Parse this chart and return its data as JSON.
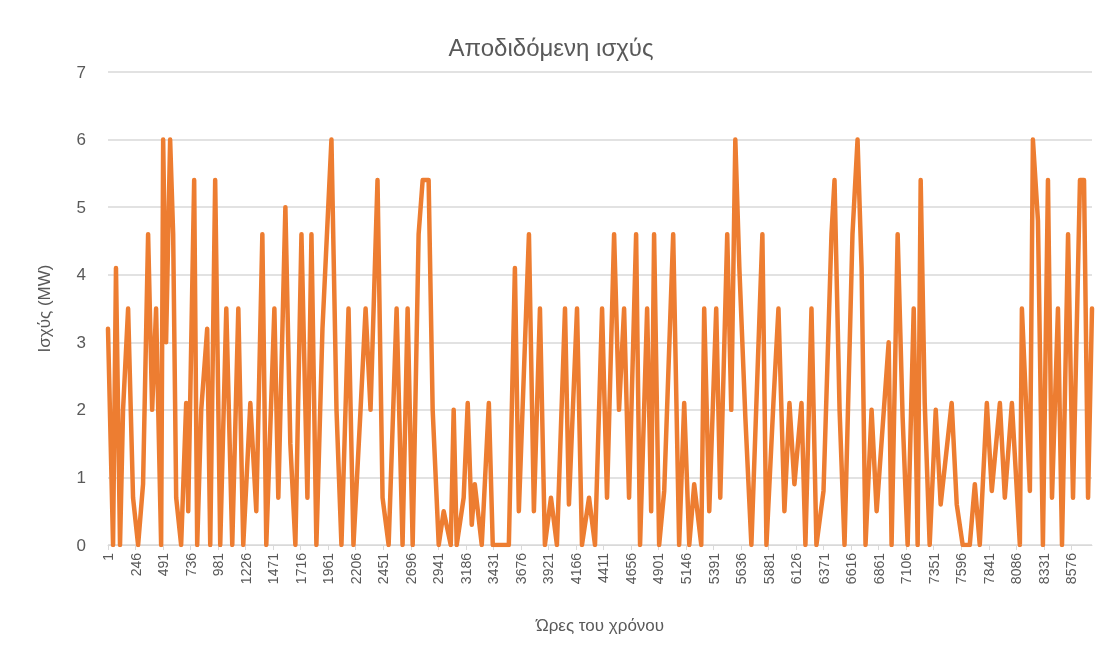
{
  "chart_data": {
    "type": "line",
    "title": "Αποδιδόμενη ισχύς",
    "xlabel": "Ώρες του χρόνου",
    "ylabel": "Ισχύς (MW)",
    "x": [
      1,
      46,
      72,
      108,
      135,
      180,
      224,
      269,
      313,
      358,
      394,
      429,
      474,
      492,
      518,
      554,
      581,
      608,
      652,
      697,
      715,
      768,
      795,
      831,
      884,
      911,
      955,
      1000,
      1054,
      1107,
      1161,
      1205,
      1268,
      1321,
      1375,
      1410,
      1482,
      1517,
      1580,
      1624,
      1669,
      1723,
      1776,
      1812,
      1856,
      1910,
      1990,
      2035,
      2079,
      2142,
      2186,
      2249,
      2294,
      2338,
      2400,
      2445,
      2499,
      2570,
      2623,
      2668,
      2713,
      2766,
      2802,
      2855,
      2891,
      2945,
      2989,
      3052,
      3078,
      3105,
      3167,
      3203,
      3239,
      3266,
      3328,
      3391,
      3426,
      3498,
      3569,
      3623,
      3658,
      3748,
      3792,
      3846,
      3890,
      3944,
      3997,
      4069,
      4104,
      4176,
      4220,
      4283,
      4336,
      4399,
      4443,
      4506,
      4550,
      4595,
      4639,
      4702,
      4737,
      4800,
      4836,
      4862,
      4907,
      4952,
      5032,
      5085,
      5130,
      5175,
      5219,
      5282,
      5308,
      5353,
      5415,
      5451,
      5513,
      5549,
      5585,
      5621,
      5674,
      5728,
      5826,
      5862,
      5924,
      5969,
      6022,
      6067,
      6111,
      6174,
      6209,
      6263,
      6307,
      6370,
      6441,
      6468,
      6513,
      6557,
      6628,
      6673,
      6709,
      6744,
      6798,
      6843,
      6950,
      6976,
      7030,
      7074,
      7119,
      7173,
      7208,
      7235,
      7271,
      7315,
      7369,
      7413,
      7511,
      7556,
      7609,
      7672,
      7717,
      7761,
      7824,
      7868,
      7940,
      7984,
      8047,
      8118,
      8136,
      8207,
      8234,
      8279,
      8323,
      8368,
      8404,
      8457,
      8493,
      8547,
      8591,
      8653,
      8689,
      8725,
      8760
    ],
    "series": [
      {
        "color": "#ed7d31",
        "values": [
          3.2,
          0,
          4.1,
          0,
          2.0,
          3.5,
          0.7,
          0,
          0.9,
          4.6,
          2.0,
          3.5,
          0,
          6.0,
          3.0,
          6.0,
          4.6,
          0.7,
          0,
          2.1,
          0.5,
          5.4,
          0,
          2.0,
          3.2,
          0,
          5.4,
          0,
          3.5,
          0,
          3.5,
          0,
          2.1,
          0.5,
          4.6,
          0,
          3.5,
          0.7,
          5.0,
          1.5,
          0,
          4.6,
          0.7,
          4.6,
          0,
          3.2,
          6.0,
          2.0,
          0,
          3.5,
          0,
          2.0,
          3.5,
          2.0,
          5.4,
          0.7,
          0,
          3.5,
          0,
          3.5,
          0,
          4.6,
          5.4,
          5.4,
          2.0,
          0,
          0.5,
          0,
          2.0,
          0,
          0.7,
          2.1,
          0.3,
          0.9,
          0,
          2.1,
          0,
          0,
          0,
          4.1,
          0.5,
          4.6,
          0.5,
          3.5,
          0,
          0.7,
          0,
          3.5,
          0.6,
          3.5,
          0,
          0.7,
          0,
          3.5,
          0.7,
          4.6,
          2.0,
          3.5,
          0.7,
          4.6,
          0,
          3.5,
          0.5,
          4.6,
          0,
          0.8,
          4.6,
          0,
          2.1,
          0,
          0.9,
          0,
          3.5,
          0.5,
          3.5,
          0.7,
          4.6,
          2.0,
          6.0,
          4.1,
          1.9,
          0,
          4.6,
          0,
          2.1,
          3.5,
          0.5,
          2.1,
          0.9,
          2.1,
          0,
          3.5,
          0,
          0.8,
          4.6,
          5.4,
          2.0,
          0,
          4.6,
          6.0,
          4.1,
          0,
          2.0,
          0.5,
          3.0,
          0,
          4.6,
          1.9,
          0,
          3.5,
          0,
          5.4,
          2.1,
          0,
          2.0,
          0.6,
          2.1,
          0.6,
          0,
          0,
          0.9,
          0,
          2.1,
          0.8,
          2.1,
          0.7,
          2.1,
          0,
          3.5,
          0.8,
          6.0,
          4.8,
          0,
          5.4,
          0.7,
          3.5,
          0,
          4.6,
          0.7,
          5.4,
          5.4,
          0.7,
          3.5
        ]
      }
    ],
    "xlim": [
      1,
      8760
    ],
    "xticks": [
      1,
      246,
      491,
      736,
      981,
      1226,
      1471,
      1716,
      1961,
      2206,
      2451,
      2696,
      2941,
      3186,
      3431,
      3676,
      3921,
      4166,
      4411,
      4656,
      4901,
      5146,
      5391,
      5636,
      5881,
      6126,
      6371,
      6616,
      6861,
      7106,
      7351,
      7596,
      7841,
      8086,
      8331,
      8576
    ],
    "ylim": [
      0,
      7
    ],
    "yticks": [
      0,
      1,
      2,
      3,
      4,
      5,
      6,
      7
    ],
    "grid": "y",
    "marker": "none",
    "line_style": "solid"
  }
}
